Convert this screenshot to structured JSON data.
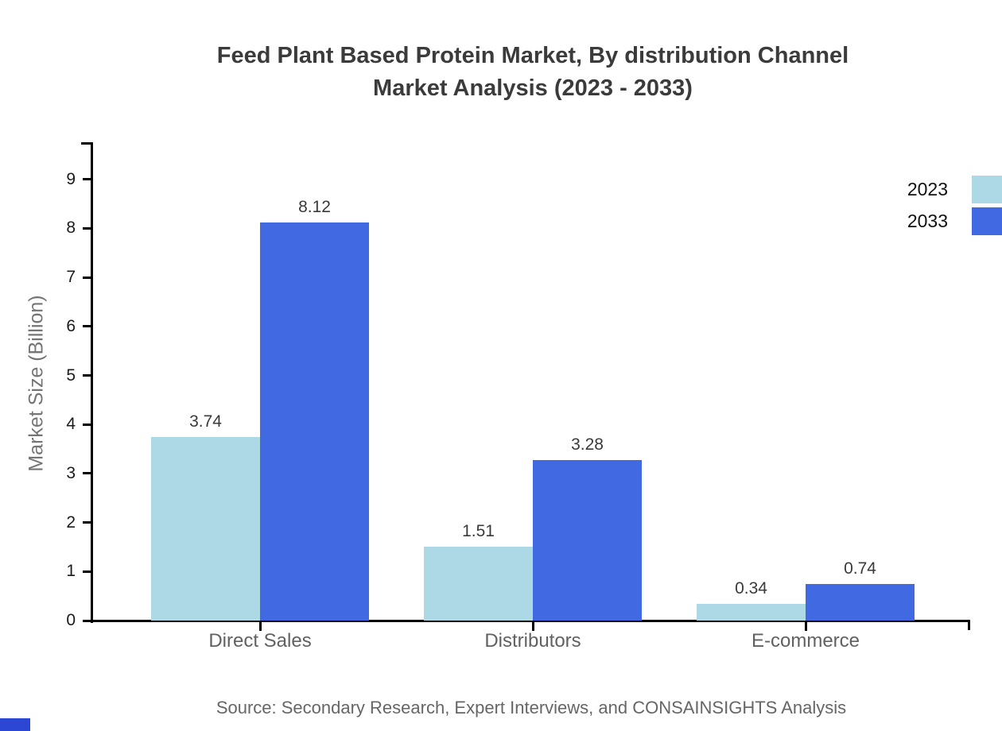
{
  "title": {
    "line1": "Feed Plant Based Protein Market, By distribution Channel",
    "line2": "Market Analysis (2023 - 2033)"
  },
  "y_axis": {
    "label": "Market Size (Billion)"
  },
  "source_note": "Source: Secondary Research, Expert Interviews, and CONSAINSIGHTS Analysis",
  "legend": {
    "position": "top-right",
    "items": [
      {
        "label": "2023",
        "color": "#ADD8E6"
      },
      {
        "label": "2033",
        "color": "#4169E1"
      }
    ]
  },
  "chart_data": {
    "type": "bar",
    "title": "Feed Plant Based Protein Market, By distribution Channel Market Analysis (2023 - 2033)",
    "categories": [
      "Direct Sales",
      "Distributors",
      "E-commerce"
    ],
    "series": [
      {
        "name": "2023",
        "color": "#ADD8E6",
        "values": [
          3.74,
          1.51,
          0.34
        ]
      },
      {
        "name": "2033",
        "color": "#4169E1",
        "values": [
          8.12,
          3.28,
          0.74
        ]
      }
    ],
    "xlabel": "",
    "ylabel": "Market Size (Billion)",
    "yticks": [
      0,
      1,
      2,
      3,
      4,
      5,
      6,
      7,
      8,
      9
    ],
    "ylim": [
      0,
      9.76
    ],
    "value_labels": true,
    "grid": false,
    "legend_position": "top-right"
  },
  "brand": {
    "corner_color": "#2c47d4"
  }
}
